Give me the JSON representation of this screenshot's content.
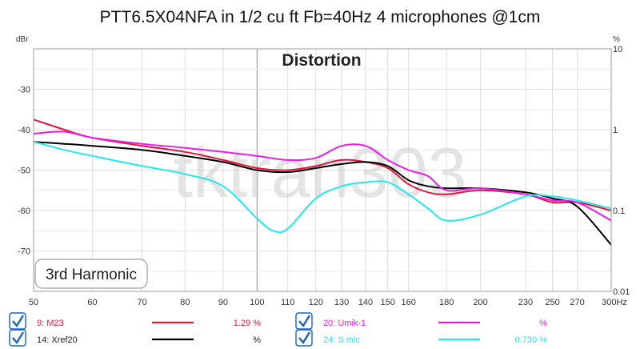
{
  "chart_data": {
    "type": "line",
    "title": "PTT6.5X04NFA in 1/2 cu ft Fb=40Hz 4 microphones @1cm",
    "annotation": "Distortion",
    "harmonic_label": "3rd Harmonic",
    "watermark": "tktran303",
    "x_scale": "log",
    "xlim": [
      50,
      300
    ],
    "x_ticks": [
      50,
      60,
      70,
      80,
      90,
      100,
      110,
      120,
      130,
      140,
      150,
      160,
      180,
      200,
      230,
      250,
      270,
      300
    ],
    "x_tick_labels": [
      "50",
      "60",
      "70",
      "80",
      "90",
      "100",
      "110",
      "120",
      "130",
      "140",
      "150",
      "160",
      "180",
      "200",
      "230",
      "250",
      "270",
      "300Hz"
    ],
    "ylabel_left": "dBr",
    "ylim_left": [
      -80,
      -20
    ],
    "y_ticks_left": [
      -30,
      -40,
      -50,
      -60,
      -70
    ],
    "ylabel_right": "%",
    "y_scale_right": "log",
    "ylim_right": [
      0.01,
      10
    ],
    "y_ticks_right": [
      10,
      1,
      0.1,
      0.01
    ],
    "y_tick_labels_right": [
      "10",
      "1",
      "0.1",
      "0.01"
    ],
    "grid": true,
    "series": [
      {
        "name": "9: M23",
        "color": "#e0183c",
        "value_text": "1.29 %",
        "x": [
          50,
          55,
          60,
          70,
          80,
          90,
          100,
          110,
          120,
          130,
          140,
          150,
          160,
          170,
          180,
          200,
          230,
          250,
          270,
          300
        ],
        "y": [
          -37.5,
          -40,
          -42,
          -44,
          -45.5,
          -47.5,
          -49.5,
          -50,
          -49,
          -47.5,
          -48,
          -49.5,
          -53.5,
          -55.5,
          -56,
          -55,
          -56,
          -58,
          -58,
          -60
        ]
      },
      {
        "name": "14: Xref20",
        "color": "#000000",
        "value_text": "%",
        "x": [
          50,
          55,
          60,
          70,
          80,
          90,
          100,
          110,
          120,
          130,
          140,
          150,
          160,
          170,
          180,
          200,
          230,
          250,
          270,
          300
        ],
        "y": [
          -43,
          -43.5,
          -44,
          -45,
          -46.5,
          -48,
          -50,
          -50.5,
          -49.5,
          -48.5,
          -48,
          -49,
          -52.5,
          -54,
          -54.5,
          -54.5,
          -55.5,
          -57,
          -59,
          -68.5
        ]
      },
      {
        "name": "20: Umik-1",
        "color": "#e81ee8",
        "value_text": "%",
        "x": [
          50,
          55,
          60,
          70,
          80,
          90,
          100,
          110,
          120,
          130,
          140,
          150,
          160,
          170,
          180,
          200,
          230,
          250,
          270,
          300
        ],
        "y": [
          -41,
          -40.5,
          -42,
          -43.5,
          -44.5,
          -45.5,
          -46.5,
          -47.5,
          -47,
          -44,
          -44,
          -47.5,
          -50,
          -51.5,
          -55,
          -54.5,
          -56,
          -57.5,
          -58,
          -62.5
        ]
      },
      {
        "name": "24: S mic",
        "color": "#22e8f0",
        "value_text": "0.730 %",
        "x": [
          50,
          55,
          60,
          70,
          80,
          90,
          100,
          105,
          110,
          120,
          130,
          140,
          150,
          160,
          170,
          180,
          200,
          230,
          250,
          270,
          300
        ],
        "y": [
          -43,
          -45,
          -46.5,
          -49,
          -51,
          -54,
          -62,
          -65,
          -64.5,
          -57,
          -54,
          -53,
          -53,
          -56,
          -59.5,
          -62.5,
          -61,
          -56.5,
          -56.5,
          -57.5,
          -59.5
        ]
      }
    ]
  }
}
